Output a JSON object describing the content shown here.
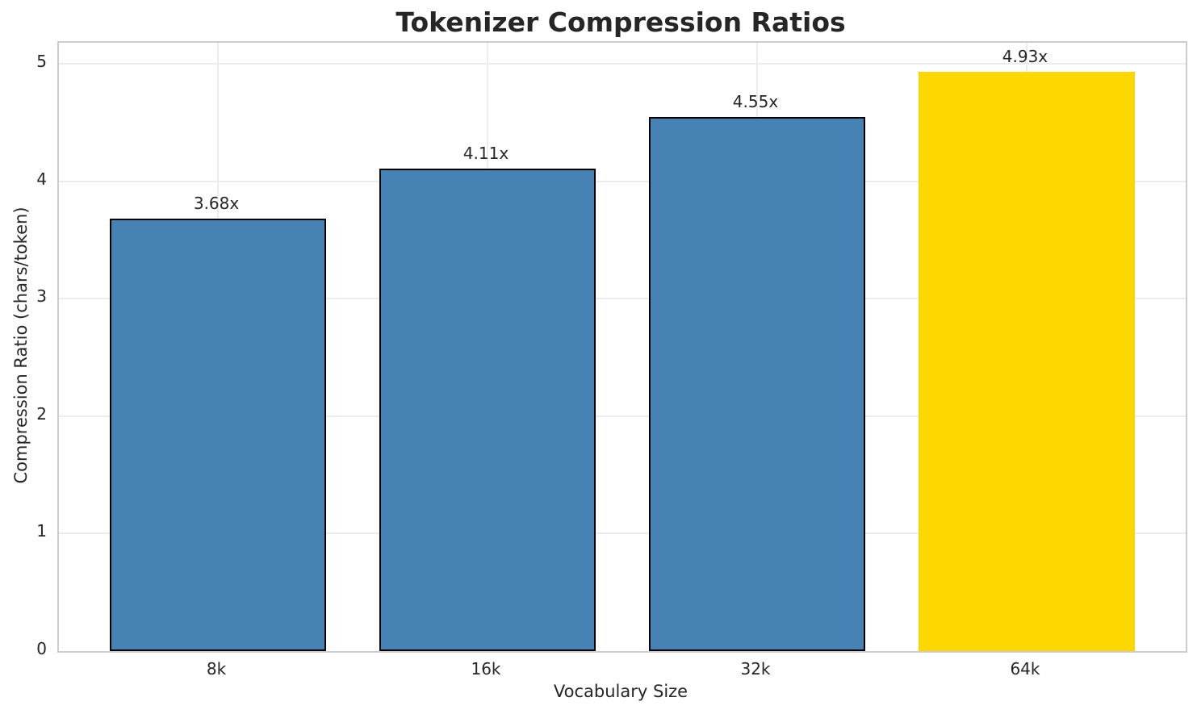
{
  "chart_data": {
    "type": "bar",
    "title": "Tokenizer Compression Ratios",
    "xlabel": "Vocabulary Size",
    "ylabel": "Compression Ratio (chars/token)",
    "categories": [
      "8k",
      "16k",
      "32k",
      "64k"
    ],
    "values": [
      3.68,
      4.11,
      4.55,
      4.93
    ],
    "bar_labels": [
      "3.68x",
      "4.11x",
      "4.55x",
      "4.93x"
    ],
    "bar_colors": [
      "#4682B4",
      "#4682B4",
      "#4682B4",
      "#FFD700"
    ],
    "bar_edge_colors": [
      "#000000",
      "#000000",
      "#000000",
      "none"
    ],
    "highlighted_category": "64k",
    "yticks": [
      0,
      1,
      2,
      3,
      4,
      5
    ],
    "ylim": [
      0,
      5.18
    ],
    "bar_width_fraction": 0.8,
    "x_margin_units": 0.59,
    "grid": true,
    "legend_position": "none",
    "colors": {
      "text": "#262626",
      "spine": "#cccccc",
      "grid": "#ececec",
      "background": "#ffffff"
    }
  }
}
